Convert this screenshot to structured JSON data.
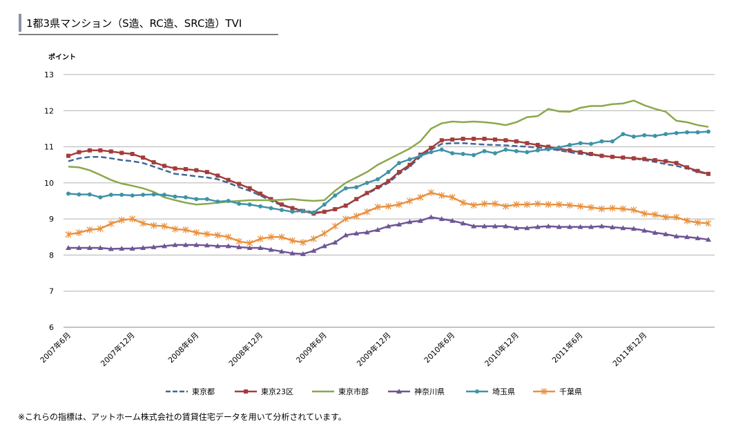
{
  "header": {
    "title": "1都3県マンション（S造、RC造、SRC造）TVI"
  },
  "chart_data": {
    "type": "line",
    "y_label": "ポイント",
    "categories": [
      "2007年6月",
      null,
      null,
      null,
      null,
      null,
      "2007年12月",
      null,
      null,
      null,
      null,
      null,
      "2008年6月",
      null,
      null,
      null,
      null,
      null,
      "2008年12月",
      null,
      null,
      null,
      null,
      null,
      "2009年6月",
      null,
      null,
      null,
      null,
      null,
      "2009年12月",
      null,
      null,
      null,
      null,
      null,
      "2010年6月",
      null,
      null,
      null,
      null,
      null,
      "2010年12月",
      null,
      null,
      null,
      null,
      null,
      "2011年6月",
      null,
      null,
      null,
      null,
      null,
      "2011年12月",
      null,
      null,
      null,
      null,
      null,
      null
    ],
    "ylim": [
      6,
      13
    ],
    "yticks": [
      6,
      7,
      8,
      9,
      10,
      11,
      12,
      13
    ],
    "grid": true,
    "series": [
      {
        "name": "東京都",
        "color": "#3f6796",
        "marker": "none",
        "dash": true,
        "values": [
          10.6,
          10.68,
          10.72,
          10.72,
          10.68,
          10.63,
          10.6,
          10.55,
          10.45,
          10.35,
          10.25,
          10.22,
          10.18,
          10.15,
          10.1,
          10.0,
          9.88,
          9.78,
          9.65,
          9.5,
          9.38,
          9.3,
          9.25,
          9.18,
          9.2,
          9.28,
          9.37,
          9.55,
          9.7,
          9.85,
          10.0,
          10.25,
          10.45,
          10.72,
          10.92,
          11.08,
          11.1,
          11.1,
          11.08,
          11.06,
          11.05,
          11.04,
          11.02,
          11.0,
          10.98,
          10.95,
          10.9,
          10.85,
          10.8,
          10.78,
          10.75,
          10.72,
          10.7,
          10.68,
          10.63,
          10.58,
          10.52,
          10.47,
          10.4,
          10.3,
          10.25
        ]
      },
      {
        "name": "東京23区",
        "color": "#a33d3a",
        "marker": "square",
        "values": [
          10.75,
          10.85,
          10.9,
          10.9,
          10.87,
          10.83,
          10.8,
          10.7,
          10.57,
          10.47,
          10.4,
          10.38,
          10.35,
          10.3,
          10.2,
          10.08,
          9.97,
          9.85,
          9.7,
          9.55,
          9.4,
          9.3,
          9.22,
          9.15,
          9.2,
          9.27,
          9.37,
          9.55,
          9.72,
          9.88,
          10.05,
          10.3,
          10.5,
          10.78,
          10.97,
          11.18,
          11.2,
          11.22,
          11.22,
          11.22,
          11.2,
          11.18,
          11.15,
          11.1,
          11.05,
          11.0,
          10.95,
          10.9,
          10.85,
          10.8,
          10.75,
          10.72,
          10.7,
          10.68,
          10.66,
          10.63,
          10.6,
          10.55,
          10.43,
          10.33,
          10.25
        ]
      },
      {
        "name": "東京市部",
        "color": "#8aa84a",
        "marker": "none",
        "values": [
          10.45,
          10.43,
          10.35,
          10.22,
          10.08,
          9.98,
          9.92,
          9.85,
          9.75,
          9.6,
          9.52,
          9.45,
          9.4,
          9.42,
          9.45,
          9.48,
          9.5,
          9.52,
          9.52,
          9.52,
          9.53,
          9.55,
          9.52,
          9.5,
          9.52,
          9.78,
          10.0,
          10.15,
          10.3,
          10.5,
          10.65,
          10.8,
          10.95,
          11.15,
          11.5,
          11.65,
          11.7,
          11.68,
          11.7,
          11.68,
          11.65,
          11.6,
          11.68,
          11.82,
          11.85,
          12.05,
          11.98,
          11.97,
          12.08,
          12.13,
          12.13,
          12.18,
          12.2,
          12.28,
          12.15,
          12.05,
          11.97,
          11.72,
          11.68,
          11.6,
          11.55
        ]
      },
      {
        "name": "神奈川県",
        "color": "#6e5594",
        "marker": "triangle",
        "values": [
          8.2,
          8.2,
          8.2,
          8.2,
          8.17,
          8.18,
          8.18,
          8.2,
          8.22,
          8.25,
          8.28,
          8.28,
          8.28,
          8.27,
          8.25,
          8.25,
          8.22,
          8.2,
          8.2,
          8.15,
          8.1,
          8.05,
          8.03,
          8.12,
          8.25,
          8.35,
          8.55,
          8.6,
          8.63,
          8.7,
          8.8,
          8.85,
          8.92,
          8.95,
          9.05,
          9.0,
          8.95,
          8.88,
          8.8,
          8.8,
          8.8,
          8.8,
          8.75,
          8.75,
          8.78,
          8.8,
          8.78,
          8.78,
          8.78,
          8.78,
          8.8,
          8.77,
          8.75,
          8.73,
          8.68,
          8.62,
          8.58,
          8.52,
          8.5,
          8.47,
          8.43
        ]
      },
      {
        "name": "埼玉県",
        "color": "#3e93a8",
        "marker": "circle",
        "values": [
          9.7,
          9.68,
          9.68,
          9.6,
          9.67,
          9.67,
          9.65,
          9.67,
          9.68,
          9.67,
          9.62,
          9.6,
          9.55,
          9.55,
          9.48,
          9.5,
          9.42,
          9.4,
          9.35,
          9.3,
          9.25,
          9.2,
          9.22,
          9.18,
          9.4,
          9.65,
          9.85,
          9.88,
          10.0,
          10.1,
          10.3,
          10.55,
          10.65,
          10.75,
          10.85,
          10.92,
          10.82,
          10.8,
          10.77,
          10.88,
          10.82,
          10.92,
          10.88,
          10.85,
          10.9,
          10.93,
          10.98,
          11.05,
          11.1,
          11.08,
          11.15,
          11.15,
          11.35,
          11.28,
          11.32,
          11.3,
          11.35,
          11.38,
          11.4,
          11.4,
          11.42
        ]
      },
      {
        "name": "千葉県",
        "color": "#e8913f",
        "marker": "star",
        "values": [
          8.57,
          8.62,
          8.7,
          8.73,
          8.87,
          8.97,
          9.0,
          8.88,
          8.82,
          8.8,
          8.72,
          8.7,
          8.62,
          8.58,
          8.55,
          8.5,
          8.38,
          8.33,
          8.45,
          8.5,
          8.5,
          8.4,
          8.35,
          8.45,
          8.6,
          8.8,
          9.0,
          9.08,
          9.2,
          9.33,
          9.35,
          9.4,
          9.5,
          9.6,
          9.73,
          9.65,
          9.6,
          9.45,
          9.38,
          9.42,
          9.42,
          9.35,
          9.4,
          9.4,
          9.42,
          9.4,
          9.4,
          9.38,
          9.35,
          9.32,
          9.28,
          9.3,
          9.28,
          9.25,
          9.15,
          9.12,
          9.05,
          9.05,
          8.95,
          8.9,
          8.88
        ]
      }
    ]
  },
  "footnote": "※これらの指標は、アットホーム株式会社の賃貸住宅データを用いて分析されています。"
}
